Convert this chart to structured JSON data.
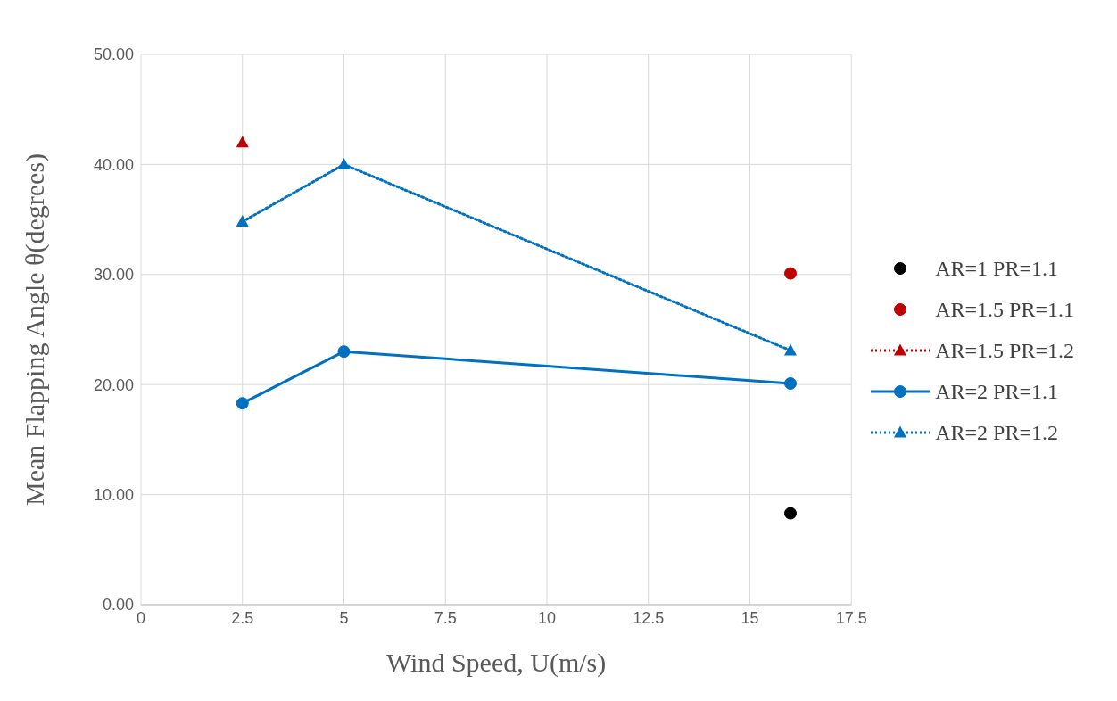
{
  "chart_data": {
    "type": "line",
    "xlabel": "Wind Speed, U(m/s)",
    "ylabel": "Mean Flapping Angle θ(degrees)",
    "xlim": [
      0,
      17.5
    ],
    "xticks": [
      0,
      2.5,
      5,
      7.5,
      10,
      12.5,
      15,
      17.5
    ],
    "ylim": [
      0,
      50
    ],
    "yticks": [
      {
        "value": 0,
        "label": "0.00"
      },
      {
        "value": 10,
        "label": "10.00"
      },
      {
        "value": 20,
        "label": "20.00"
      },
      {
        "value": 30,
        "label": "30.00"
      },
      {
        "value": 40,
        "label": "40.00"
      },
      {
        "value": 50,
        "label": "50.00"
      }
    ],
    "grid": true,
    "legend": "right",
    "series": [
      {
        "name": "AR=1 PR=1.1",
        "type": "scatter",
        "color": "#000000",
        "marker": "circle",
        "x": [
          16
        ],
        "values": [
          8.3
        ]
      },
      {
        "name": "AR=1.5 PR=1.1",
        "type": "scatter",
        "color": "#c00000",
        "marker": "circle",
        "x": [
          16
        ],
        "values": [
          30.1
        ]
      },
      {
        "name": "AR=1.5 PR=1.2",
        "color": "#c00000",
        "marker": "triangle",
        "line_style": "dotted",
        "x": [
          2.5
        ],
        "values": [
          42.0
        ]
      },
      {
        "name": "AR=2 PR=1.1",
        "color": "#0070c0",
        "marker": "circle",
        "line_style": "solid",
        "x": [
          2.5,
          5,
          16
        ],
        "values": [
          18.3,
          23.0,
          20.1
        ]
      },
      {
        "name": "AR=2 PR=1.2",
        "color": "#0070c0",
        "marker": "triangle",
        "line_style": "dotted",
        "x": [
          2.5,
          5,
          16
        ],
        "values": [
          34.8,
          40.0,
          23.1
        ]
      }
    ]
  }
}
